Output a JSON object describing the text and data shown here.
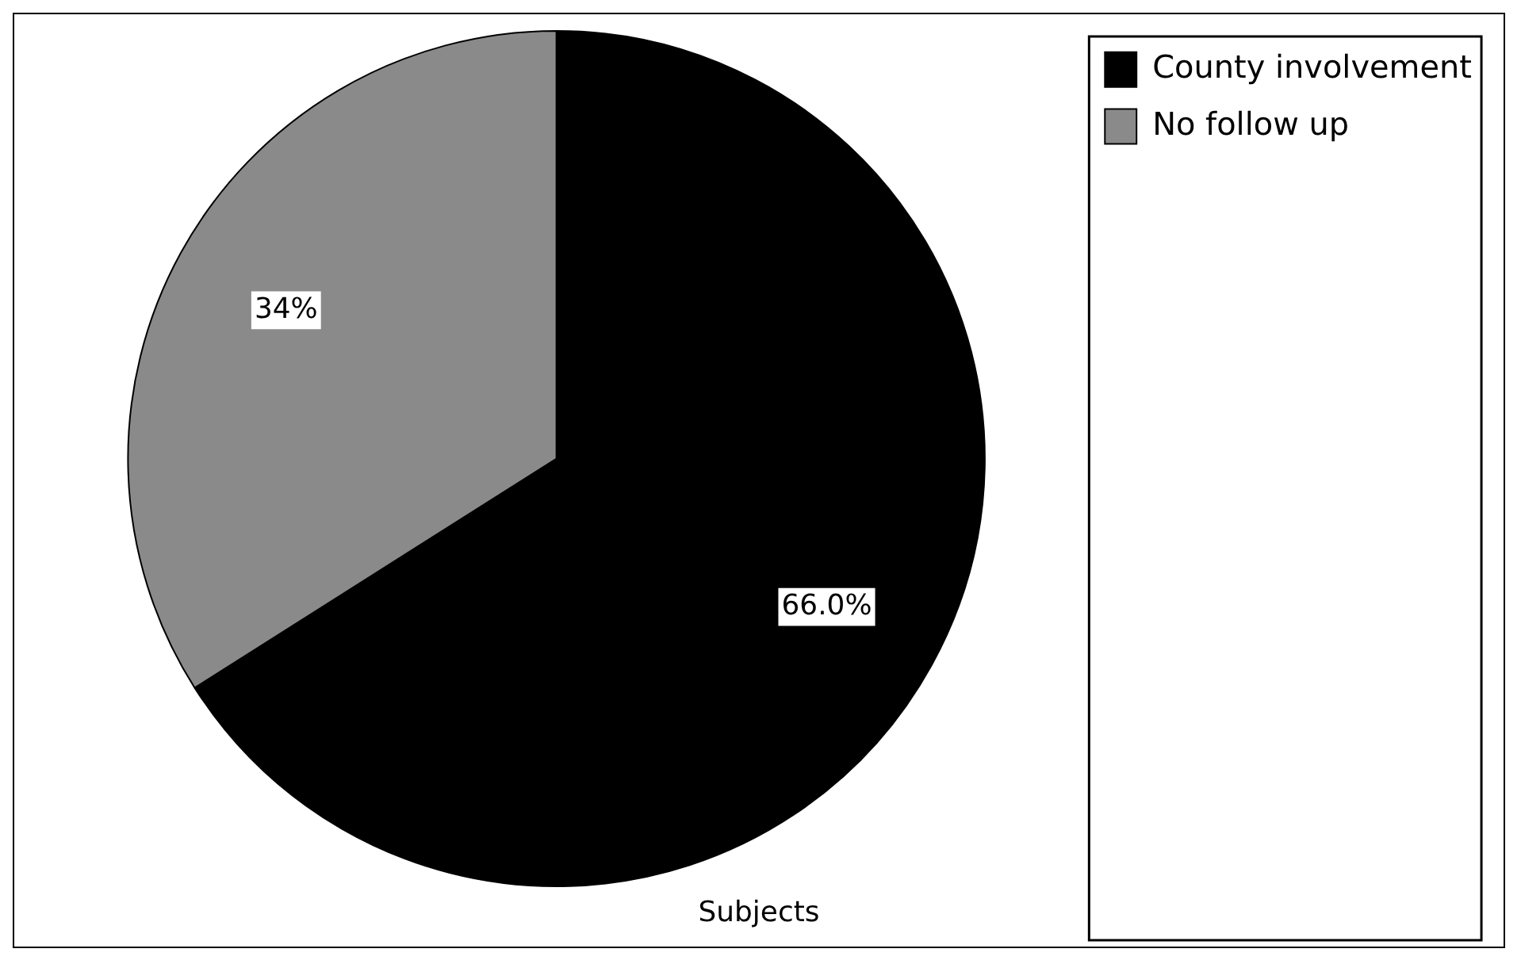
{
  "chart_data": {
    "type": "pie",
    "title": "Subjects",
    "categories": [
      "County involvement",
      "No follow up"
    ],
    "values": [
      66,
      34
    ],
    "value_labels": [
      "66.0%",
      "34%"
    ],
    "colors": [
      "#000000",
      "#8a8a8a"
    ],
    "legend": "top right"
  }
}
